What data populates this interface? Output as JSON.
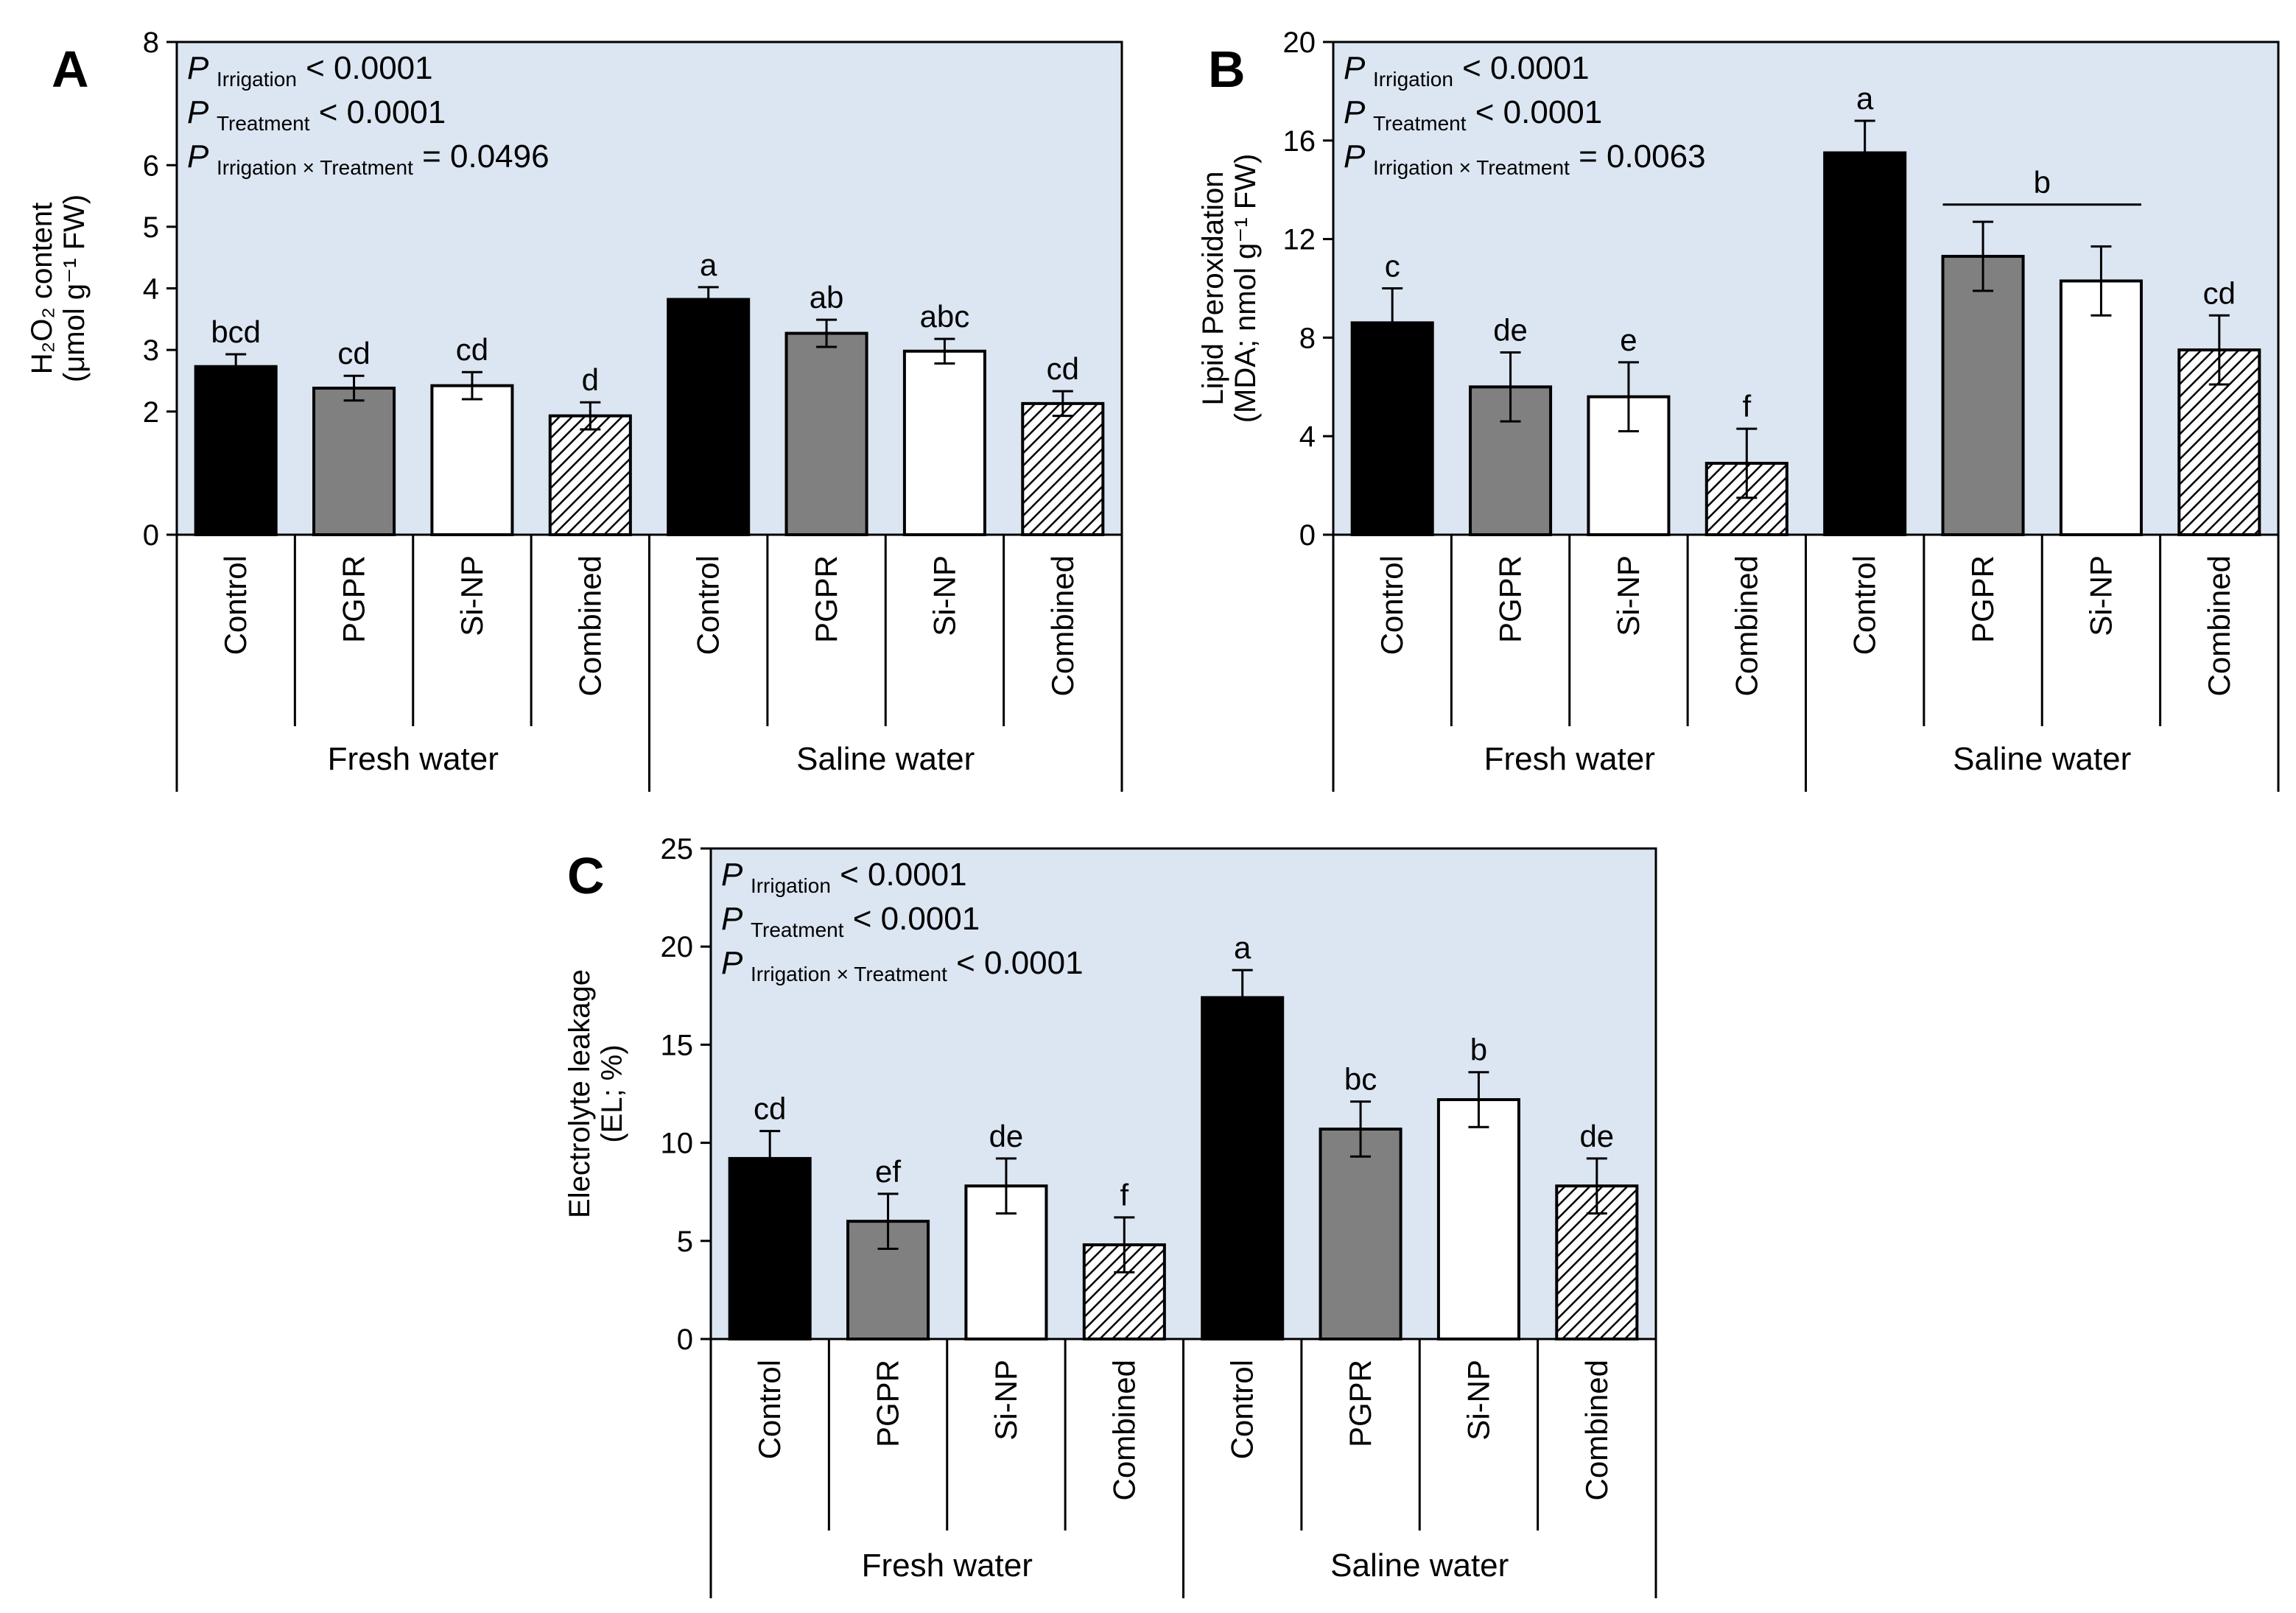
{
  "colors": {
    "plot_bg": "#dce6f2",
    "control": "#000000",
    "pgpr": "#808080",
    "sinp": "#ffffff",
    "combined_hatch": "#000000"
  },
  "chart_data": [
    {
      "id": "A",
      "panel_label": "A",
      "type": "bar",
      "ylabel_lines": [
        "H₂O₂ content",
        "(μmol g⁻¹ FW)"
      ],
      "ylim": [
        0,
        8
      ],
      "yticks": [
        0,
        2,
        3,
        4,
        5,
        6,
        8
      ],
      "categories": [
        "Control",
        "PGPR",
        "Si-NP",
        "Combined",
        "Control",
        "PGPR",
        "Si-NP",
        "Combined"
      ],
      "groups": [
        "Fresh water",
        "Saline water"
      ],
      "values": [
        2.73,
        2.38,
        2.42,
        1.93,
        3.82,
        3.27,
        2.98,
        2.13
      ],
      "errors": [
        0.2,
        0.2,
        0.22,
        0.22,
        0.2,
        0.22,
        0.2,
        0.2
      ],
      "letters": [
        "bcd",
        "cd",
        "cd",
        "d",
        "a",
        "ab",
        "abc",
        "cd"
      ],
      "stats": [
        {
          "p": "P",
          "sub": "Irrigation",
          "val": " < 0.0001"
        },
        {
          "p": "P",
          "sub": "Treatment",
          "val": " < 0.0001"
        },
        {
          "p": "P",
          "sub": "Irrigation × Treatment",
          "val": " = 0.0496"
        }
      ]
    },
    {
      "id": "B",
      "panel_label": "B",
      "type": "bar",
      "ylabel_lines": [
        "Lipid Peroxidation",
        "(MDA; nmol g⁻¹ FW)"
      ],
      "ylim": [
        0,
        20
      ],
      "yticks": [
        0,
        4,
        8,
        12,
        16,
        20
      ],
      "categories": [
        "Control",
        "PGPR",
        "Si-NP",
        "Combined",
        "Control",
        "PGPR",
        "Si-NP",
        "Combined"
      ],
      "groups": [
        "Fresh water",
        "Saline water"
      ],
      "values": [
        8.6,
        6.0,
        5.6,
        2.9,
        15.5,
        11.3,
        10.3,
        7.5
      ],
      "errors": [
        1.4,
        1.4,
        1.4,
        1.4,
        1.3,
        1.4,
        1.4,
        1.4
      ],
      "letters": [
        "c",
        "de",
        "e",
        "f",
        "a",
        "",
        "",
        "cd"
      ],
      "bracket": {
        "from": 5,
        "to": 6,
        "value": 13.4,
        "letter": "b"
      },
      "stats": [
        {
          "p": "P",
          "sub": "Irrigation",
          "val": " < 0.0001"
        },
        {
          "p": "P",
          "sub": "Treatment",
          "val": " < 0.0001"
        },
        {
          "p": "P",
          "sub": "Irrigation × Treatment",
          "val": " = 0.0063"
        }
      ]
    },
    {
      "id": "C",
      "panel_label": "C",
      "type": "bar",
      "ylabel_lines": [
        "Electrolyte leakage",
        "(EL; %)"
      ],
      "ylim": [
        0,
        25
      ],
      "yticks": [
        0,
        5,
        10,
        15,
        20,
        25
      ],
      "categories": [
        "Control",
        "PGPR",
        "Si-NP",
        "Combined",
        "Control",
        "PGPR",
        "Si-NP",
        "Combined"
      ],
      "groups": [
        "Fresh water",
        "Saline water"
      ],
      "values": [
        9.2,
        6.0,
        7.8,
        4.8,
        17.4,
        10.7,
        12.2,
        7.8
      ],
      "errors": [
        1.4,
        1.4,
        1.4,
        1.4,
        1.4,
        1.4,
        1.4,
        1.4
      ],
      "letters": [
        "cd",
        "ef",
        "de",
        "f",
        "a",
        "bc",
        "b",
        "de"
      ],
      "stats": [
        {
          "p": "P",
          "sub": "Irrigation",
          "val": " < 0.0001"
        },
        {
          "p": "P",
          "sub": "Treatment",
          "val": " < 0.0001"
        },
        {
          "p": "P",
          "sub": "Irrigation × Treatment",
          "val": " < 0.0001"
        }
      ]
    }
  ]
}
